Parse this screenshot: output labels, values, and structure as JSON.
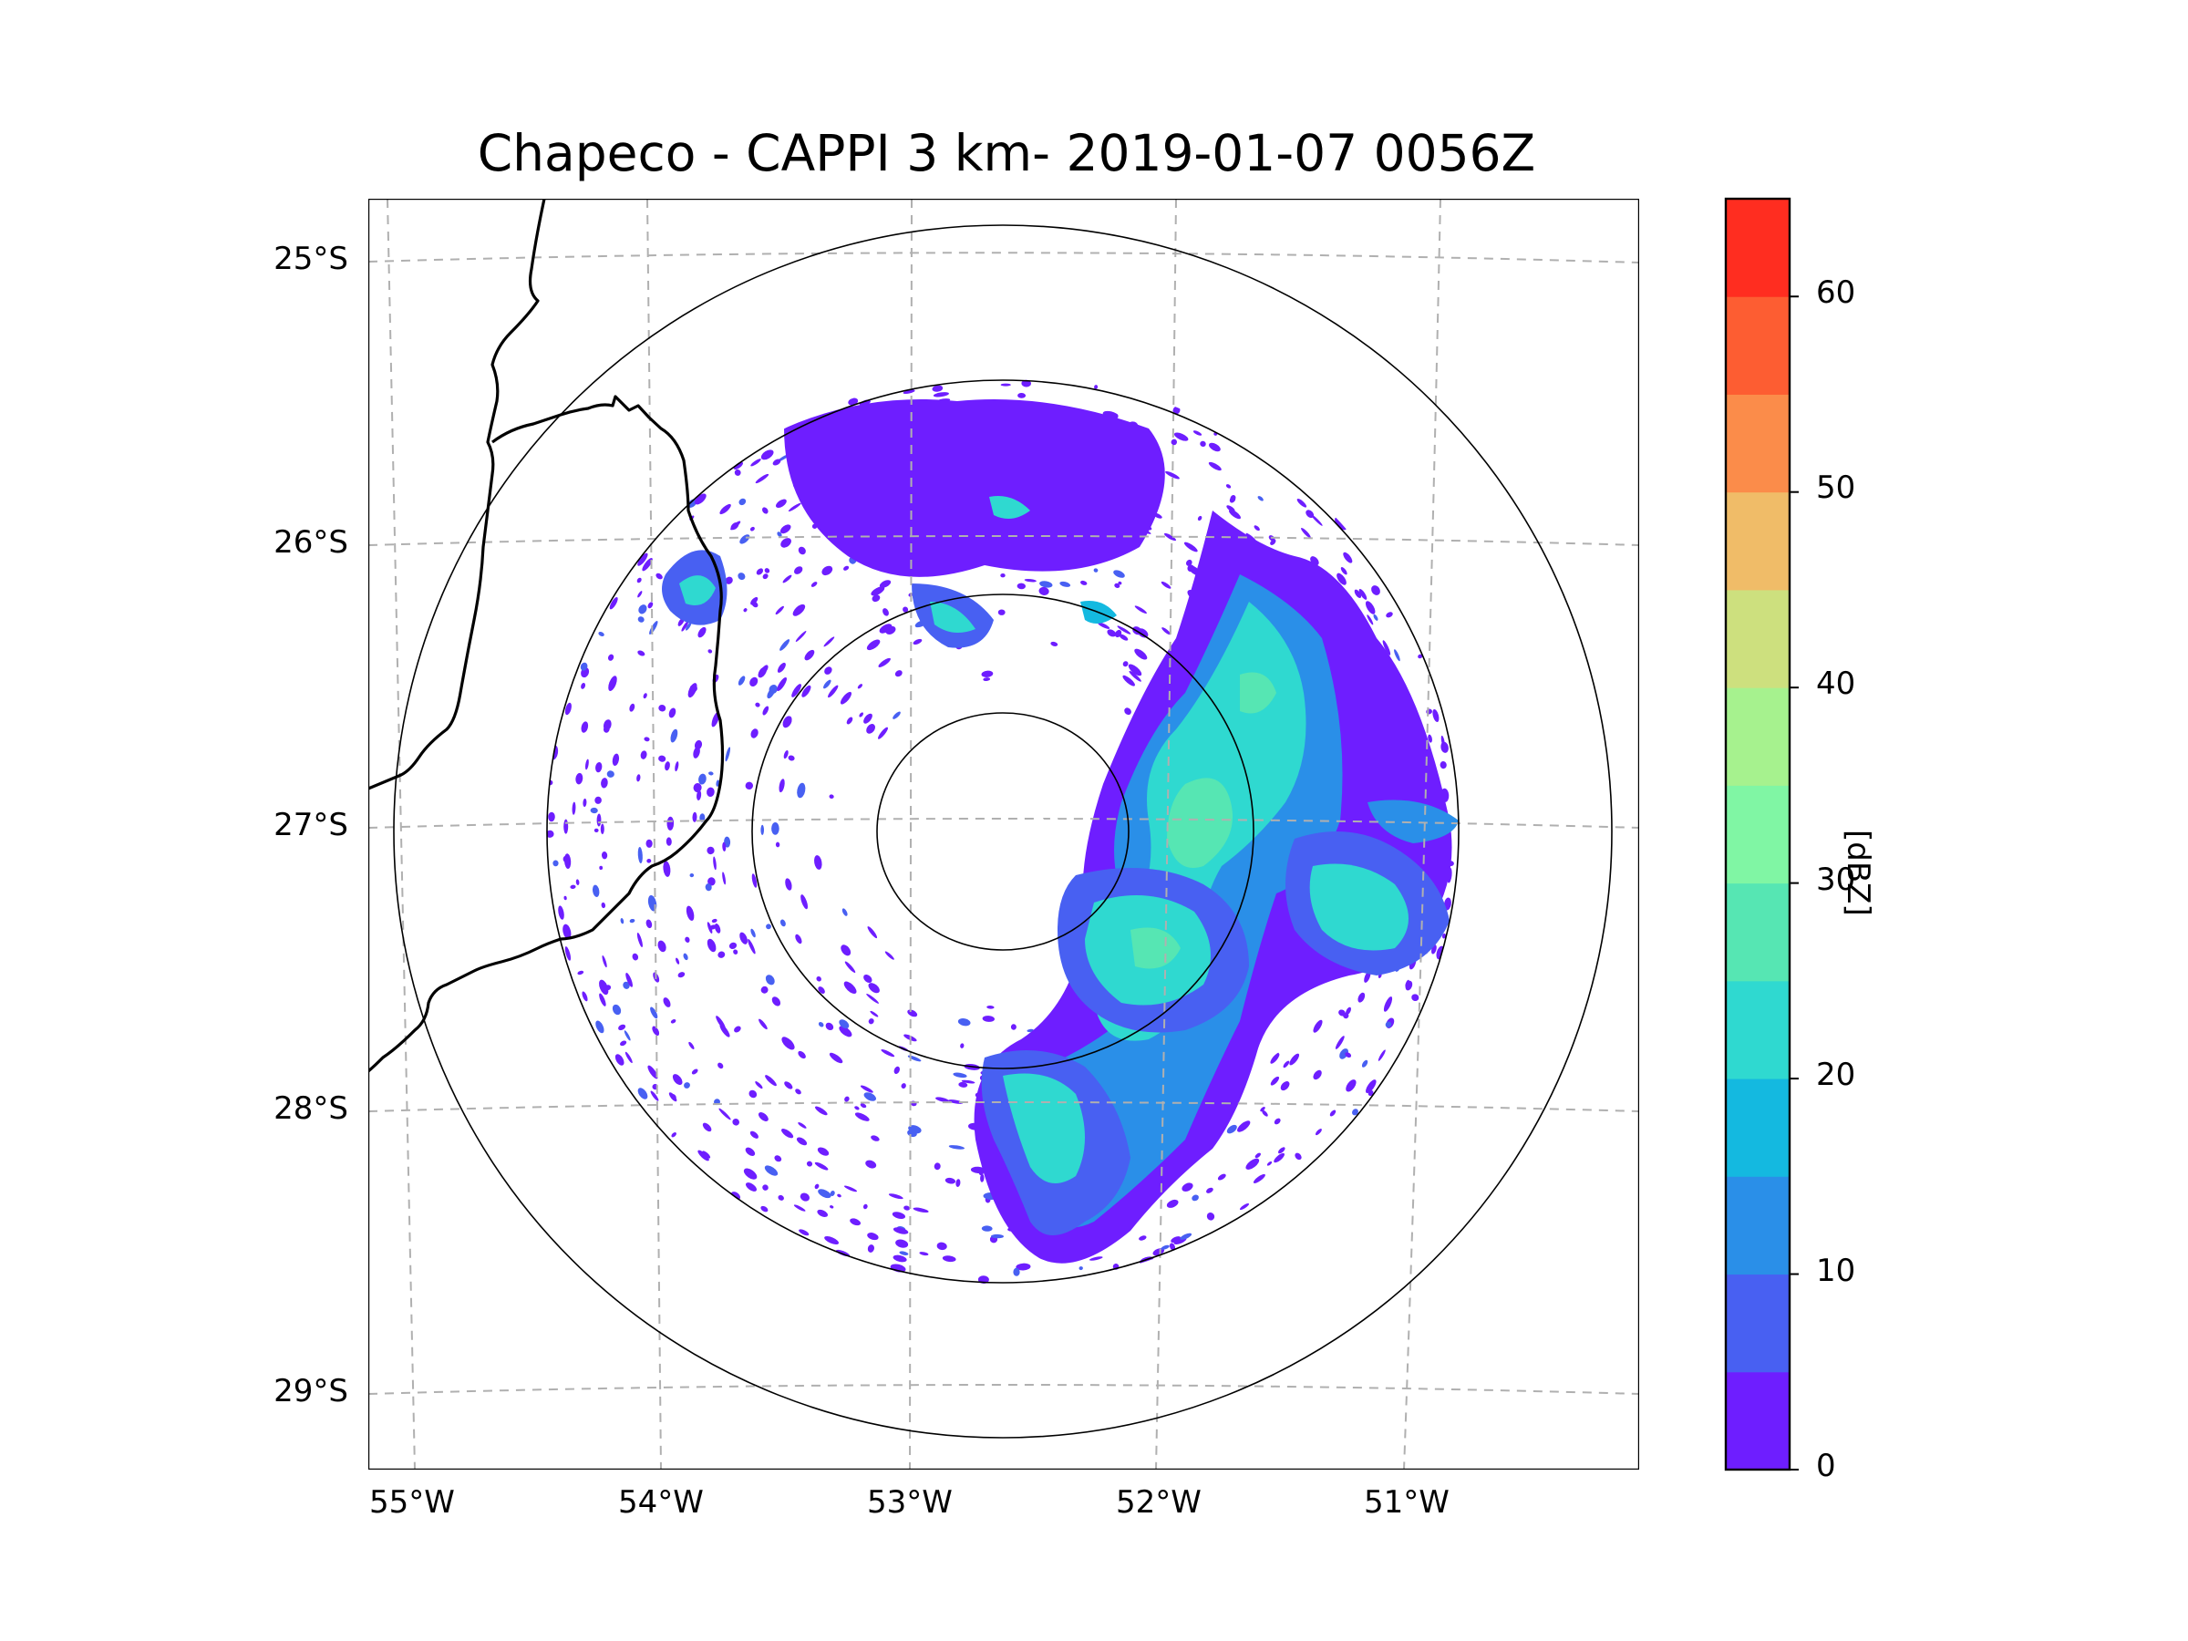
{
  "title": "Chapeco - CAPPI 3 km- 2019-01-07 0056Z",
  "lat_labels": [
    "25°S",
    "26°S",
    "27°S",
    "28°S",
    "29°S"
  ],
  "lon_labels": [
    "55°W",
    "54°W",
    "53°W",
    "52°W",
    "51°W"
  ],
  "colorbar": {
    "unit_label": "[dBZ]",
    "tick_labels": [
      "0",
      "10",
      "20",
      "30",
      "40",
      "50",
      "60"
    ],
    "min": 0,
    "max": 65,
    "step": 5,
    "colors": [
      "#6e1eff",
      "#4860f2",
      "#2a8fe8",
      "#14b9e0",
      "#2fd9d0",
      "#56e6b3",
      "#80f6a4",
      "#a6f28e",
      "#cde07e",
      "#f0bc68",
      "#fb8c4a",
      "#fd5d32",
      "#ff2d20"
    ]
  },
  "chart_data": {
    "type": "map-radar-ppi",
    "title": "Chapeco - CAPPI 3 km- 2019-01-07 0056Z",
    "variable": "reflectivity",
    "unit": "dBZ",
    "radar_center": {
      "lon": -52.6,
      "lat": -27.0
    },
    "lon_range": [
      -55.2,
      -50.0
    ],
    "lat_range": [
      -29.3,
      -24.8
    ],
    "range_rings_deg": [
      0.5,
      1.0,
      1.5,
      2.0
    ],
    "gridlines": {
      "lons": [
        -55,
        -54,
        -53,
        -52,
        -51
      ],
      "lats": [
        -25,
        -26,
        -27,
        -28,
        -29
      ],
      "style": "dashed"
    },
    "colorbar_range": [
      0,
      65
    ],
    "colorbar_ticks": [
      0,
      10,
      20,
      30,
      40,
      50,
      60
    ]
  }
}
